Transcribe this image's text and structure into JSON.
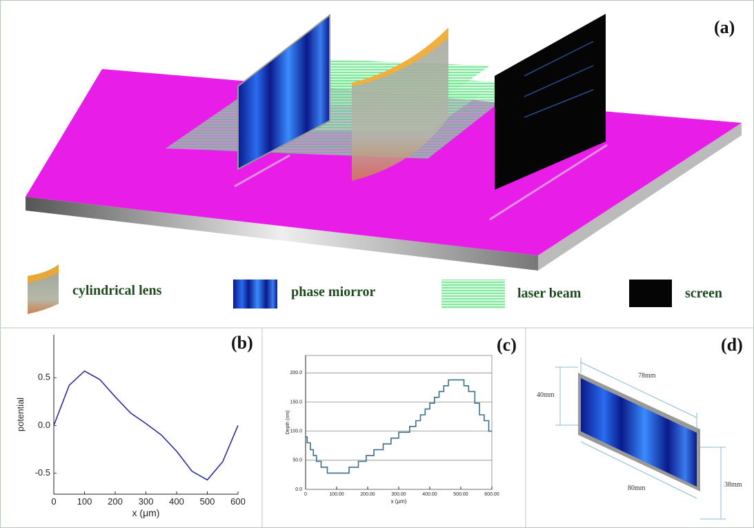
{
  "figure": {
    "panel_a": {
      "label": "(a)",
      "legend": [
        "cylindrical lens",
        "phase miorror",
        "laser beam",
        "screen"
      ]
    },
    "panel_d": {
      "label": "(d)",
      "dimensions": [
        "40mm",
        "78mm",
        "80mm",
        "38mm"
      ]
    }
  },
  "chart_data": [
    {
      "type": "line",
      "panel_label": "(b)",
      "x_label": "x (μm)",
      "y_label": "potential",
      "color": "#2a2a9c",
      "x": [
        0,
        50,
        100,
        150,
        200,
        250,
        300,
        350,
        400,
        450,
        500,
        550,
        600
      ],
      "values": [
        0,
        0.42,
        0.57,
        0.48,
        0.3,
        0.13,
        0.02,
        -0.1,
        -0.27,
        -0.48,
        -0.57,
        -0.38,
        0
      ],
      "xlim": [
        0,
        600
      ],
      "ylim": [
        -0.72,
        0.95
      ],
      "xticks": [
        0,
        100,
        200,
        300,
        400,
        500,
        600
      ],
      "yticks": [
        -0.5,
        {
          "value": 0,
          "label": "0.0"
        },
        0.5
      ],
      "grid": false
    },
    {
      "type": "line",
      "panel_label": "(c)",
      "x_label": "x (μm)",
      "y_label": "Depth (nm)",
      "color": "#3a6e8c",
      "x": [
        0,
        5,
        5,
        15,
        15,
        25,
        25,
        35,
        35,
        50,
        50,
        70,
        70,
        140,
        140,
        170,
        170,
        195,
        195,
        220,
        220,
        250,
        250,
        275,
        275,
        300,
        300,
        335,
        335,
        355,
        355,
        370,
        370,
        385,
        385,
        400,
        400,
        415,
        415,
        430,
        430,
        445,
        445,
        460,
        460,
        510,
        510,
        525,
        525,
        545,
        545,
        560,
        560,
        575,
        575,
        590,
        590,
        600
      ],
      "values": [
        90,
        90,
        80,
        80,
        68,
        68,
        58,
        58,
        48,
        48,
        38,
        38,
        28,
        28,
        38,
        38,
        48,
        48,
        58,
        58,
        68,
        68,
        78,
        78,
        88,
        88,
        98,
        98,
        108,
        108,
        118,
        118,
        128,
        128,
        138,
        138,
        148,
        148,
        158,
        158,
        168,
        168,
        178,
        178,
        188,
        188,
        178,
        178,
        168,
        168,
        148,
        148,
        128,
        128,
        118,
        118,
        100,
        100
      ],
      "xlim": [
        0,
        600
      ],
      "ylim": [
        0,
        230
      ],
      "xticks": [
        0,
        {
          "value": 100,
          "label": "100.00"
        },
        {
          "value": 200,
          "label": "200.00"
        },
        {
          "value": 300,
          "label": "300.00"
        },
        {
          "value": 400,
          "label": "400.00"
        },
        {
          "value": 500,
          "label": "500.00"
        },
        {
          "value": 600,
          "label": "600.00"
        }
      ],
      "yticks": [
        {
          "value": 0,
          "label": "0.0"
        },
        {
          "value": 50,
          "label": "50.0"
        },
        {
          "value": 100,
          "label": "100.0"
        },
        {
          "value": 150,
          "label": "150.0"
        },
        {
          "value": 200,
          "label": "200.0"
        }
      ],
      "grid": true
    }
  ]
}
